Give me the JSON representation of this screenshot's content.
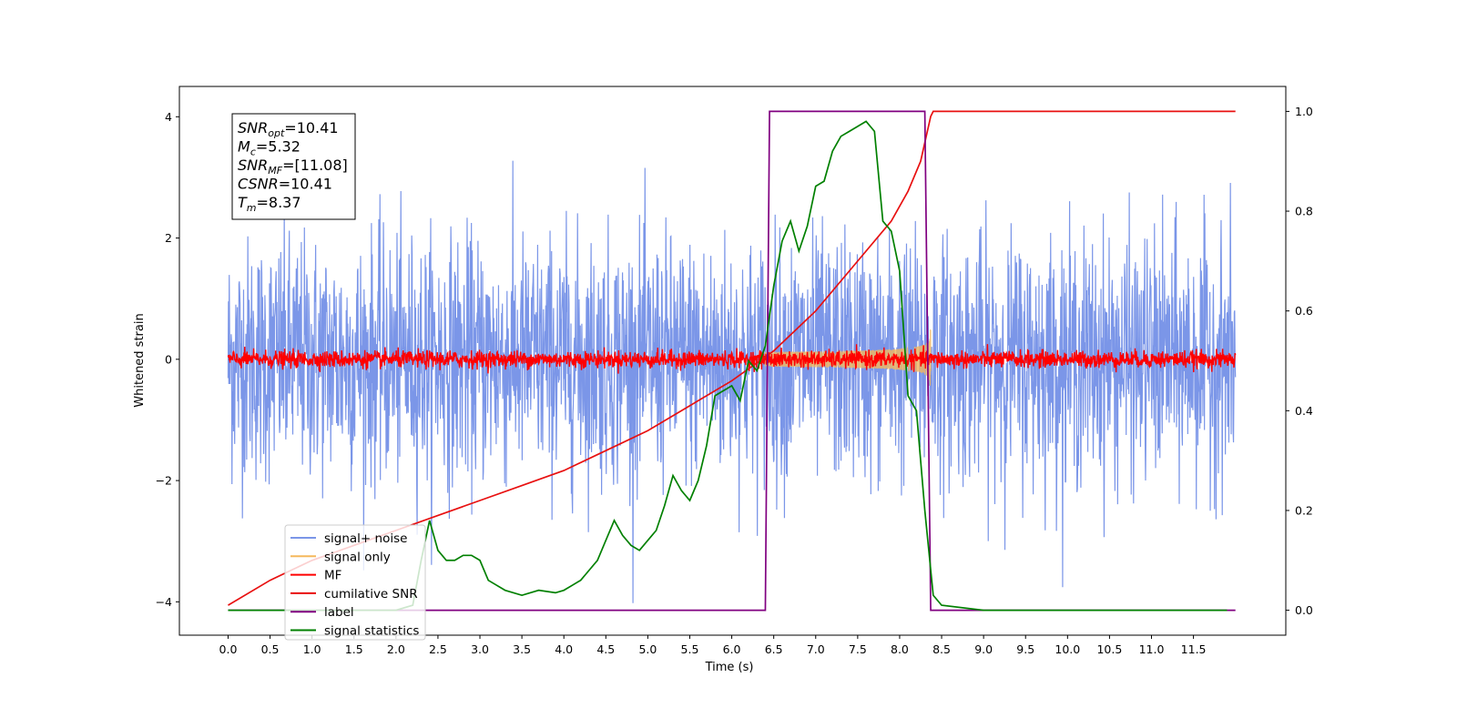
{
  "chart_data": {
    "type": "line",
    "title": "",
    "xlabel": "Time (s)",
    "ylabel": "Whitened strain",
    "y2label": "",
    "xlim": [
      -0.58,
      12.6
    ],
    "ylim": [
      -4.55,
      4.5
    ],
    "y2lim": [
      -0.05,
      1.05
    ],
    "xticks": [
      "0.0",
      "0.5",
      "1.0",
      "1.5",
      "2.0",
      "2.5",
      "3.0",
      "3.5",
      "4.0",
      "4.5",
      "5.0",
      "5.5",
      "6.0",
      "6.5",
      "7.0",
      "7.5",
      "8.0",
      "8.5",
      "9.0",
      "9.5",
      "10.0",
      "10.5",
      "11.0",
      "11.5"
    ],
    "yticks": [
      "−4",
      "−2",
      "0",
      "2",
      "4"
    ],
    "y2ticks": [
      "0.0",
      "0.2",
      "0.4",
      "0.6",
      "0.8",
      "1.0"
    ],
    "grid": false,
    "legend_position": "lower-left",
    "info_box": [
      {
        "base": "SNR",
        "sub": "opt",
        "value": "=10.41"
      },
      {
        "base": "M",
        "sub": "c",
        "value": "=5.32"
      },
      {
        "base": "SNR",
        "sub": "MF",
        "value": "=[11.08]"
      },
      {
        "base": "CSNR",
        "sub": "",
        "value": "=10.41"
      },
      {
        "base": "T",
        "sub": "m",
        "value": "=8.37"
      }
    ],
    "series": [
      {
        "name": "signal+ noise",
        "color": "#7b96e8",
        "axis": "left",
        "style": "noise",
        "amplitude_sd": 1.0,
        "x_range": [
          0,
          12.0
        ]
      },
      {
        "name": "signal only",
        "color": "#f5b85c",
        "axis": "left",
        "style": "chirp",
        "x_range": [
          6.4,
          8.37
        ],
        "peak_amplitude": 0.8
      },
      {
        "name": "MF",
        "color": "#ff0000",
        "axis": "left",
        "style": "noise",
        "amplitude_sd": 0.07,
        "x_range": [
          0,
          12.0
        ]
      },
      {
        "name": "cumilative SNR",
        "color": "#e81010",
        "axis": "right",
        "x": [
          0.0,
          0.5,
          1.0,
          1.5,
          2.0,
          2.5,
          3.0,
          3.5,
          4.0,
          4.5,
          5.0,
          5.5,
          6.0,
          6.5,
          7.0,
          7.5,
          7.9,
          8.1,
          8.25,
          8.37,
          8.4,
          12.0
        ],
        "values": [
          0.01,
          0.06,
          0.1,
          0.13,
          0.16,
          0.19,
          0.22,
          0.25,
          0.28,
          0.32,
          0.36,
          0.41,
          0.46,
          0.52,
          0.6,
          0.7,
          0.78,
          0.84,
          0.9,
          0.99,
          1.0,
          1.0
        ]
      },
      {
        "name": "label",
        "color": "#800080",
        "axis": "right",
        "x": [
          0.0,
          6.4,
          6.45,
          8.3,
          8.37,
          12.0
        ],
        "values": [
          0.0,
          0.0,
          1.0,
          1.0,
          0.0,
          0.0
        ]
      },
      {
        "name": "signal statistics",
        "color": "#008000",
        "axis": "right",
        "x": [
          0.0,
          1.0,
          2.0,
          2.2,
          2.3,
          2.4,
          2.5,
          2.6,
          2.7,
          2.8,
          2.9,
          3.0,
          3.1,
          3.2,
          3.3,
          3.5,
          3.7,
          3.9,
          4.0,
          4.1,
          4.2,
          4.3,
          4.4,
          4.5,
          4.6,
          4.7,
          4.8,
          4.9,
          5.0,
          5.1,
          5.2,
          5.3,
          5.4,
          5.5,
          5.6,
          5.7,
          5.8,
          5.9,
          6.0,
          6.1,
          6.2,
          6.3,
          6.4,
          6.5,
          6.6,
          6.7,
          6.8,
          6.9,
          7.0,
          7.1,
          7.2,
          7.3,
          7.4,
          7.5,
          7.6,
          7.7,
          7.8,
          7.9,
          8.0,
          8.1,
          8.2,
          8.3,
          8.4,
          8.5,
          9.0,
          11.0,
          11.9
        ],
        "values": [
          0.0,
          0.0,
          0.0,
          0.01,
          0.1,
          0.18,
          0.12,
          0.1,
          0.1,
          0.11,
          0.11,
          0.1,
          0.06,
          0.05,
          0.04,
          0.03,
          0.04,
          0.035,
          0.04,
          0.05,
          0.06,
          0.08,
          0.1,
          0.14,
          0.18,
          0.15,
          0.13,
          0.12,
          0.14,
          0.16,
          0.21,
          0.27,
          0.24,
          0.22,
          0.26,
          0.33,
          0.43,
          0.44,
          0.45,
          0.42,
          0.5,
          0.48,
          0.53,
          0.65,
          0.74,
          0.78,
          0.72,
          0.77,
          0.85,
          0.86,
          0.92,
          0.95,
          0.96,
          0.97,
          0.98,
          0.96,
          0.78,
          0.76,
          0.68,
          0.43,
          0.4,
          0.2,
          0.03,
          0.01,
          0.0,
          0.0,
          0.0
        ]
      }
    ]
  }
}
